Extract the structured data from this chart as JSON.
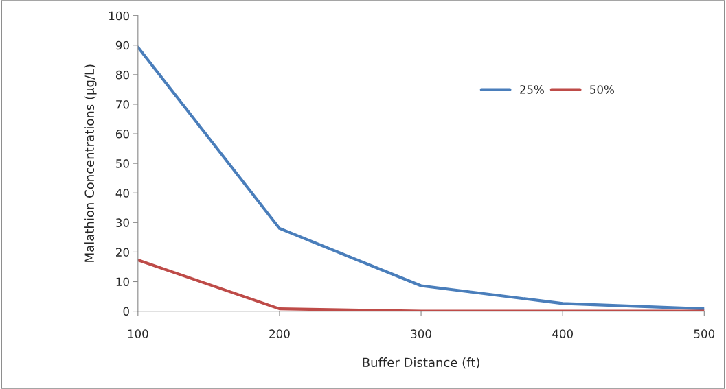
{
  "chart_data": {
    "type": "line",
    "xlabel": "Buffer Distance (ft)",
    "ylabel": "Malathion Concentrations (µg/L)",
    "x": [
      100,
      200,
      300,
      400,
      500
    ],
    "series": [
      {
        "name": "25%",
        "color": "#4a7ebb",
        "values": [
          89.3,
          28,
          8.6,
          2.6,
          0.8
        ]
      },
      {
        "name": "50%",
        "color": "#be4b48",
        "values": [
          17.3,
          0.8,
          0,
          0,
          0
        ]
      }
    ],
    "xlim": [
      100,
      500
    ],
    "xticks": [
      100,
      200,
      300,
      400,
      500
    ],
    "ylim": [
      0,
      100
    ],
    "yticks": [
      0,
      10,
      20,
      30,
      40,
      50,
      60,
      70,
      80,
      90,
      100
    ],
    "grid": false,
    "legend": "top right",
    "marker": "none",
    "line_style": "solid"
  }
}
